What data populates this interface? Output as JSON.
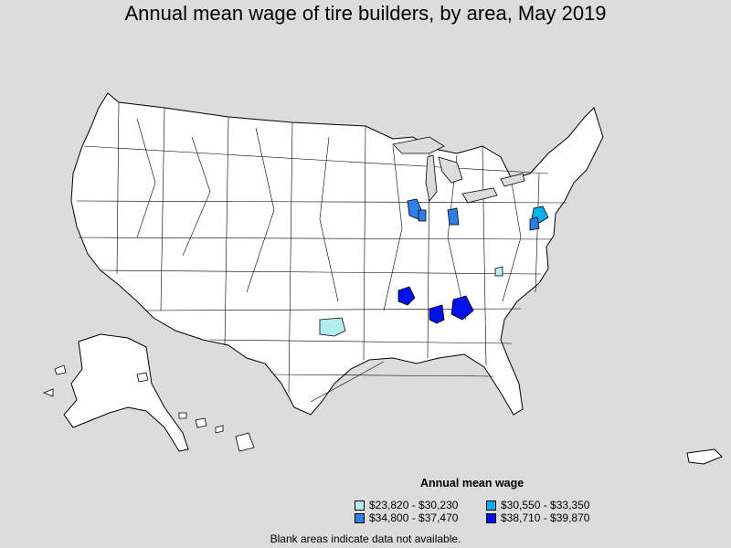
{
  "title": "Annual mean wage of tire builders, by area, May 2019",
  "legend": {
    "title": "Annual mean wage",
    "items": [
      {
        "label": "$23,820 - $30,230",
        "color": "#b3eeee"
      },
      {
        "label": "$30,550 - $33,350",
        "color": "#00b0f0"
      },
      {
        "label": "$34,800 - $37,470",
        "color": "#2f7fe6"
      },
      {
        "label": "$38,710 - $39,870",
        "color": "#0010e8"
      }
    ]
  },
  "footnote": "Blank areas indicate data not available.",
  "colors": {
    "background": "#dcdcdc",
    "land": "#ffffff",
    "border": "#000000"
  }
}
